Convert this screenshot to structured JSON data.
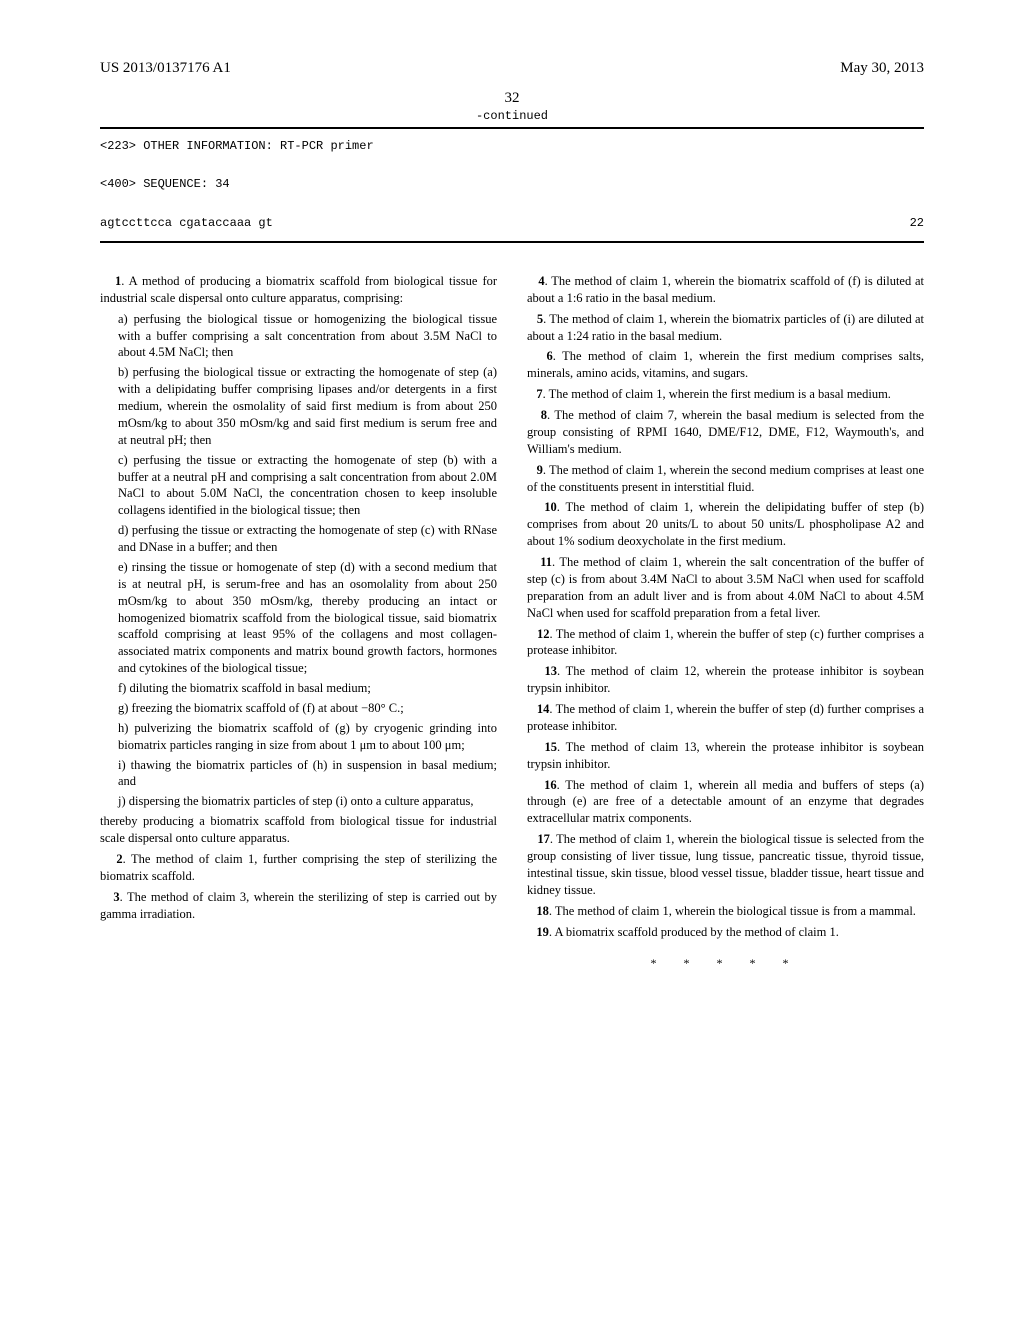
{
  "header": {
    "publication": "US 2013/0137176 A1",
    "date": "May 30, 2013",
    "page_number": "32"
  },
  "sequence": {
    "continued": "-continued",
    "info_line": "<223> OTHER INFORMATION: RT-PCR primer",
    "seq_line": "<400> SEQUENCE: 34",
    "sequence_text": "agtccttcca cgataccaaa gt",
    "sequence_length": "22"
  },
  "claims": {
    "c1_intro": "1. A method of producing a biomatrix scaffold from biological tissue for industrial scale dispersal onto culture apparatus, comprising:",
    "c1_a": "a) perfusing the biological tissue or homogenizing the biological tissue with a buffer comprising a salt concentration from about 3.5M NaCl to about 4.5M NaCl; then",
    "c1_b": "b) perfusing the biological tissue or extracting the homogenate of step (a) with a delipidating buffer comprising lipases and/or detergents in a first medium, wherein the osmolality of said first medium is from about 250 mOsm/kg to about 350 mOsm/kg and said first medium is serum free and at neutral pH; then",
    "c1_c": "c) perfusing the tissue or extracting the homogenate of step (b) with a buffer at a neutral pH and comprising a salt concentration from about 2.0M NaCl to about 5.0M NaCl, the concentration chosen to keep insoluble collagens identified in the biological tissue; then",
    "c1_d": "d) perfusing the tissue or extracting the homogenate of step (c) with RNase and DNase in a buffer; and then",
    "c1_e": "e) rinsing the tissue or homogenate of step (d) with a second medium that is at neutral pH, is serum-free and has an osomolality from about 250 mOsm/kg to about 350 mOsm/kg, thereby producing an intact or homogenized biomatrix scaffold from the biological tissue, said biomatrix scaffold comprising at least 95% of the collagens and most collagen-associated matrix components and matrix bound growth factors, hormones and cytokines of the biological tissue;",
    "c1_f": "f) diluting the biomatrix scaffold in basal medium;",
    "c1_g": "g) freezing the biomatrix scaffold of (f) at about −80° C.;",
    "c1_h": "h) pulverizing the biomatrix scaffold of (g) by cryogenic grinding into biomatrix particles ranging in size from about 1 μm to about 100 μm;",
    "c1_i": "i) thawing the biomatrix particles of (h) in suspension in basal medium; and",
    "c1_j": "j) dispersing the biomatrix particles of step (i) onto a culture apparatus,",
    "c1_end": "thereby producing a biomatrix scaffold from biological tissue for industrial scale dispersal onto culture apparatus.",
    "c2": "2. The method of claim 1, further comprising the step of sterilizing the biomatrix scaffold.",
    "c3": "3. The method of claim 3, wherein the sterilizing of step is carried out by gamma irradiation.",
    "c4": "4. The method of claim 1, wherein the biomatrix scaffold of (f) is diluted at about a 1:6 ratio in the basal medium.",
    "c5": "5. The method of claim 1, wherein the biomatrix particles of (i) are diluted at about a 1:24 ratio in the basal medium.",
    "c6": "6. The method of claim 1, wherein the first medium comprises salts, minerals, amino acids, vitamins, and sugars.",
    "c7": "7. The method of claim 1, wherein the first medium is a basal medium.",
    "c8": "8. The method of claim 7, wherein the basal medium is selected from the group consisting of RPMI 1640, DME/F12, DME, F12, Waymouth's, and William's medium.",
    "c9": "9. The method of claim 1, wherein the second medium comprises at least one of the constituents present in interstitial fluid.",
    "c10": "10. The method of claim 1, wherein the delipidating buffer of step (b) comprises from about 20 units/L to about 50 units/L phospholipase A2 and about 1% sodium deoxycholate in the first medium.",
    "c11": "11. The method of claim 1, wherein the salt concentration of the buffer of step (c) is from about 3.4M NaCl to about 3.5M NaCl when used for scaffold preparation from an adult liver and is from about 4.0M NaCl to about 4.5M NaCl when used for scaffold preparation from a fetal liver.",
    "c12": "12. The method of claim 1, wherein the buffer of step (c) further comprises a protease inhibitor.",
    "c13": "13. The method of claim 12, wherein the protease inhibitor is soybean trypsin inhibitor.",
    "c14": "14. The method of claim 1, wherein the buffer of step (d) further comprises a protease inhibitor.",
    "c15": "15. The method of claim 13, wherein the protease inhibitor is soybean trypsin inhibitor.",
    "c16": "16. The method of claim 1, wherein all media and buffers of steps (a) through (e) are free of a detectable amount of an enzyme that degrades extracellular matrix components.",
    "c17": "17. The method of claim 1, wherein the biological tissue is selected from the group consisting of liver tissue, lung tissue, pancreatic tissue, thyroid tissue, intestinal tissue, skin tissue, blood vessel tissue, bladder tissue, heart tissue and kidney tissue.",
    "c18": "18. The method of claim 1, wherein the biological tissue is from a mammal.",
    "c19": "19. A biomatrix scaffold produced by the method of claim 1."
  },
  "end_mark": "* * * * *"
}
